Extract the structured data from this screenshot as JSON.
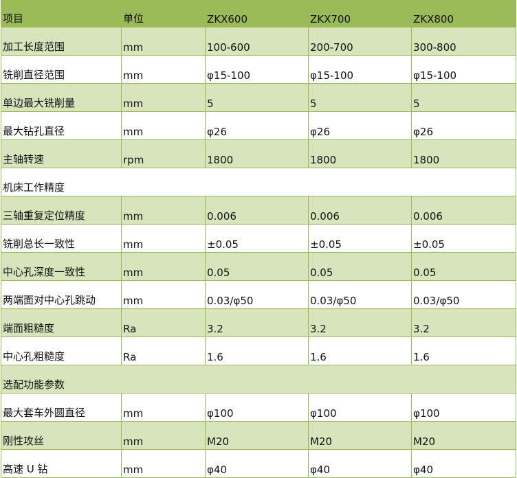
{
  "colors": {
    "header": "#9bbb59",
    "alt_row": "#d8e4bc",
    "border": "#9bbb59"
  },
  "header": [
    "项目",
    "单位",
    "ZKX600",
    "ZKX700",
    "ZKX800"
  ],
  "rows": [
    {
      "type": "data",
      "cells": [
        "加工长度范围",
        "mm",
        "100-600",
        "200-700",
        "300-800"
      ]
    },
    {
      "type": "data",
      "cells": [
        "铣削直径范围",
        "mm",
        "φ15-100",
        "φ15-100",
        "φ15-100"
      ]
    },
    {
      "type": "data",
      "cells": [
        "单边最大铣削量",
        "mm",
        "5",
        "5",
        "5"
      ]
    },
    {
      "type": "data",
      "cells": [
        "最大钻孔直径",
        "mm",
        "φ26",
        "φ26",
        "φ26"
      ]
    },
    {
      "type": "data",
      "cells": [
        "主轴转速",
        "rpm",
        "1800",
        "1800",
        "1800"
      ]
    },
    {
      "type": "section",
      "label": "机床工作精度"
    },
    {
      "type": "data",
      "cells": [
        "三轴重复定位精度",
        "mm",
        "0.006",
        "0.006",
        "0.006"
      ]
    },
    {
      "type": "data",
      "cells": [
        "铣削总长一致性",
        "mm",
        "±0.05",
        "±0.05",
        "±0.05"
      ]
    },
    {
      "type": "data",
      "cells": [
        "中心孔深度一致性",
        "mm",
        "0.05",
        "0.05",
        "0.05"
      ]
    },
    {
      "type": "data",
      "cells": [
        "两端面对中心孔跳动",
        "mm",
        "0.03/φ50",
        "0.03/φ50",
        "0.03/φ50"
      ]
    },
    {
      "type": "data",
      "cells": [
        "端面粗糙度",
        "Ra",
        "3.2",
        "3.2",
        "3.2"
      ]
    },
    {
      "type": "data",
      "cells": [
        "中心孔粗糙度",
        "Ra",
        "1.6",
        "1.6",
        "1.6"
      ]
    },
    {
      "type": "section",
      "label": "选配功能参数"
    },
    {
      "type": "data",
      "cells": [
        "最大套车外圆直径",
        "mm",
        "φ100",
        "φ100",
        "φ100"
      ]
    },
    {
      "type": "data",
      "cells": [
        "刚性攻丝",
        "mm",
        "M20",
        "M20",
        "M20"
      ]
    },
    {
      "type": "data",
      "cells": [
        "高速 U 钻",
        "mm",
        "φ40",
        "φ40",
        "φ40"
      ]
    }
  ]
}
